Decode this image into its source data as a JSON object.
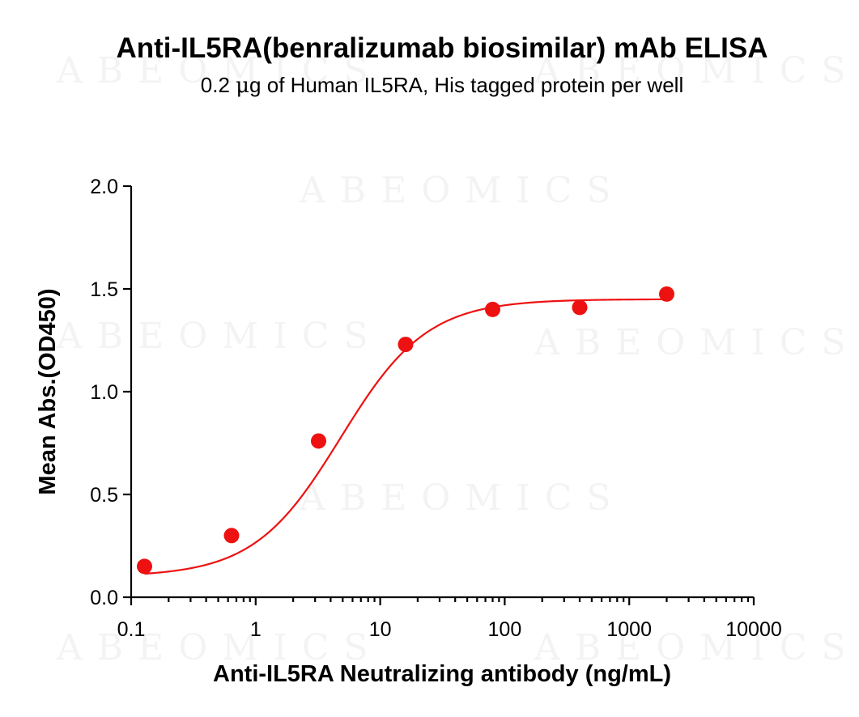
{
  "chart_data": {
    "type": "scatter",
    "title": "Anti-IL5RA(benralizumab biosimilar) mAb ELISA",
    "subtitle_prefix": "0.2 ",
    "subtitle_mu": "μ",
    "subtitle_suffix": "g of Human IL5RA, His tagged protein per well",
    "xlabel": "Anti-IL5RA Neutralizing antibody (ng/mL)",
    "ylabel": "Mean Abs.(OD450)",
    "xscale": "log",
    "xlim": [
      0.1,
      10000
    ],
    "ylim": [
      0.0,
      2.0
    ],
    "xticks": [
      0.1,
      1,
      10,
      100,
      1000,
      10000
    ],
    "xtick_labels": [
      "0.1",
      "1",
      "10",
      "100",
      "1000",
      "10000"
    ],
    "yticks": [
      0.0,
      0.5,
      1.0,
      1.5,
      2.0
    ],
    "ytick_labels": [
      "0.0",
      "0.5",
      "1.0",
      "1.5",
      "2.0"
    ],
    "grid": false,
    "color": "#ee1111",
    "series": [
      {
        "x": [
          0.128,
          0.64,
          3.2,
          16,
          80,
          400,
          2000
        ],
        "y": [
          0.15,
          0.3,
          0.76,
          1.23,
          1.4,
          1.41,
          1.475
        ]
      }
    ],
    "watermark": "ABEOMICS"
  }
}
